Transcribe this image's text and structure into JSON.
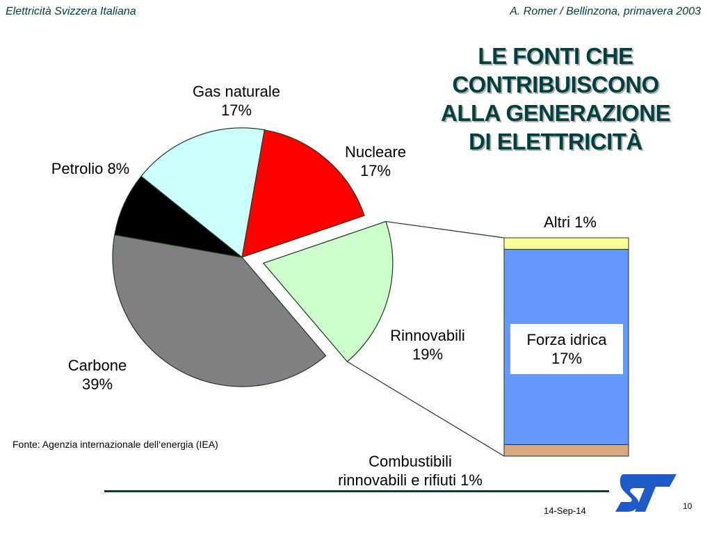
{
  "header": {
    "left": "Elettricità Svizzera Italiana",
    "right": "A. Romer / Bellinzona, primavera 2003"
  },
  "title": [
    "LE FONTI CHE",
    "CONTRIBUISCONO",
    "ALLA GENERAZIONE",
    "DI ELETTRICITÀ"
  ],
  "labels": {
    "gas": [
      "Gas naturale",
      "17%"
    ],
    "nucleare": [
      "Nucleare",
      "17%"
    ],
    "petrolio": [
      "Petrolio 8%"
    ],
    "carbone": [
      "Carbone",
      "39%"
    ],
    "rinnovabili": [
      "Rinnovabili",
      "19%"
    ],
    "altri": [
      "Altri 1%"
    ],
    "idrica": [
      "Forza idrica",
      "17%"
    ],
    "combustibili": [
      "Combustibili",
      "rinnovabili e rifiuti 1%"
    ]
  },
  "source": "Fonte: Agenzia internazionale dell‘energia (IEA)",
  "footer": {
    "date": "14-Sep-14",
    "page": "10"
  },
  "chart_data": [
    {
      "type": "pie",
      "title": "LE FONTI CHE CONTRIBUISCONO ALLA GENERAZIONE DI ELETTRICITÀ",
      "slices": [
        {
          "name": "Nucleare",
          "value": 17,
          "color": "#ff0000"
        },
        {
          "name": "Rinnovabili",
          "value": 19,
          "color": "#ccffcc",
          "exploded": true
        },
        {
          "name": "Carbone",
          "value": 39,
          "color": "#808080"
        },
        {
          "name": "Petrolio",
          "value": 8,
          "color": "#000000"
        },
        {
          "name": "Gas naturale",
          "value": 17,
          "color": "#ccffff"
        }
      ]
    },
    {
      "type": "bar",
      "stacked": true,
      "title": "Rinnovabili 19%",
      "series": [
        {
          "name": "Combustibili rinnovabili e rifiuti",
          "value": 1,
          "color": "#d8a880"
        },
        {
          "name": "Forza idrica",
          "value": 17,
          "color": "#6699ff"
        },
        {
          "name": "Altri",
          "value": 1,
          "color": "#ffff99"
        }
      ]
    }
  ]
}
